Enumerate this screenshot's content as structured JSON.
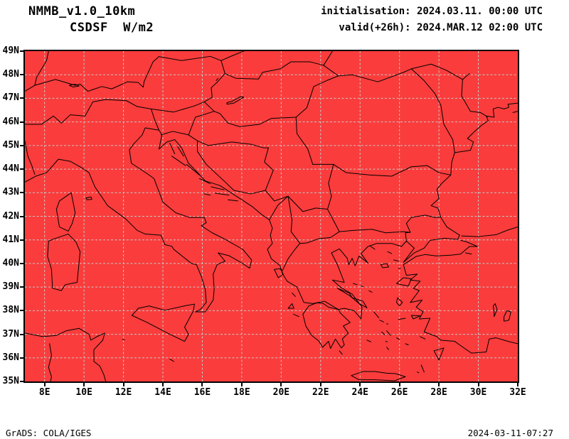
{
  "header": {
    "model_title": "NMMB_v1.0_10km",
    "variable_title": "CSDSF  W/m2",
    "init_line": "initialisation: 2024.03.11. 00:00 UTC",
    "valid_line": "valid(+26h): 2024.MAR.12 02:00 UTC"
  },
  "footer": {
    "credit": "GrADS: COLA/IGES",
    "timestamp": "2024-03-11-07:27"
  },
  "colors": {
    "field_fill": "#fa3c3c",
    "coastline": "#000000",
    "gridline": "#c8c8c8",
    "background": "#ffffff",
    "text": "#000000"
  },
  "chart_data": {
    "type": "map",
    "title": "NMMB_v1.0_10km",
    "subtitle": "CSDSF  W/m2",
    "field_name": "CSDSF",
    "field_units": "W/m2",
    "field_uniform_value": 0,
    "note": "entire lat-lon domain shaded a single uniform red (clear-sky downward solar flux at 02:00 UTC night = 0 W/m2); black coastlines and country borders, dashed gray graticule",
    "initialisation": "2024.03.11. 00:00 UTC",
    "valid": "valid(+26h): 2024.MAR.12 02:00 UTC",
    "projection": "lat-lon",
    "lon_range": [
      7,
      32
    ],
    "lat_range": [
      35,
      49
    ],
    "lat_tick_labels": [
      "49N",
      "48N",
      "47N",
      "46N",
      "45N",
      "44N",
      "43N",
      "42N",
      "41N",
      "40N",
      "39N",
      "38N",
      "37N",
      "36N",
      "35N"
    ],
    "lat_tick_values": [
      49,
      48,
      47,
      46,
      45,
      44,
      43,
      42,
      41,
      40,
      39,
      38,
      37,
      36,
      35
    ],
    "lon_tick_labels": [
      "8E",
      "10E",
      "12E",
      "14E",
      "16E",
      "18E",
      "20E",
      "22E",
      "24E",
      "26E",
      "28E",
      "30E",
      "32E"
    ],
    "lon_tick_values": [
      8,
      10,
      12,
      14,
      16,
      18,
      20,
      22,
      24,
      26,
      28,
      30,
      32
    ],
    "grid": {
      "style": "dashed",
      "lat_interval_deg": 1,
      "lon_interval_deg": 2,
      "legend": "none",
      "colorbar": "none"
    },
    "region": "central Mediterranean / Balkans / Aegean / western Black Sea"
  }
}
